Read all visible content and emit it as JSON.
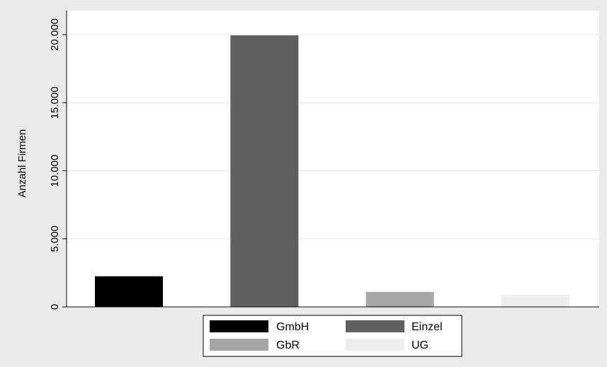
{
  "chart_data": {
    "type": "bar",
    "categories": [
      "GmbH",
      "Einzel",
      "GbR",
      "UG"
    ],
    "values": [
      2250,
      19950,
      1100,
      880
    ],
    "colors": [
      "#000000",
      "#5f5f5f",
      "#a6a6a6",
      "#eeeeee"
    ],
    "title": "",
    "xlabel": "",
    "ylabel": "Anzahl Firmen",
    "ylim": [
      0,
      20000
    ],
    "yticks": [
      0,
      5000,
      10000,
      15000,
      20000
    ],
    "ytick_labels": [
      "0",
      "5.000",
      "10.000",
      "15.000",
      "20.000"
    ],
    "grid": true,
    "legend": {
      "placement": "bottom",
      "columns": 2,
      "entries": [
        "GmbH",
        "Einzel",
        "GbR",
        "UG"
      ]
    },
    "background": "#eaeaea",
    "plot_background": "#ffffff"
  }
}
